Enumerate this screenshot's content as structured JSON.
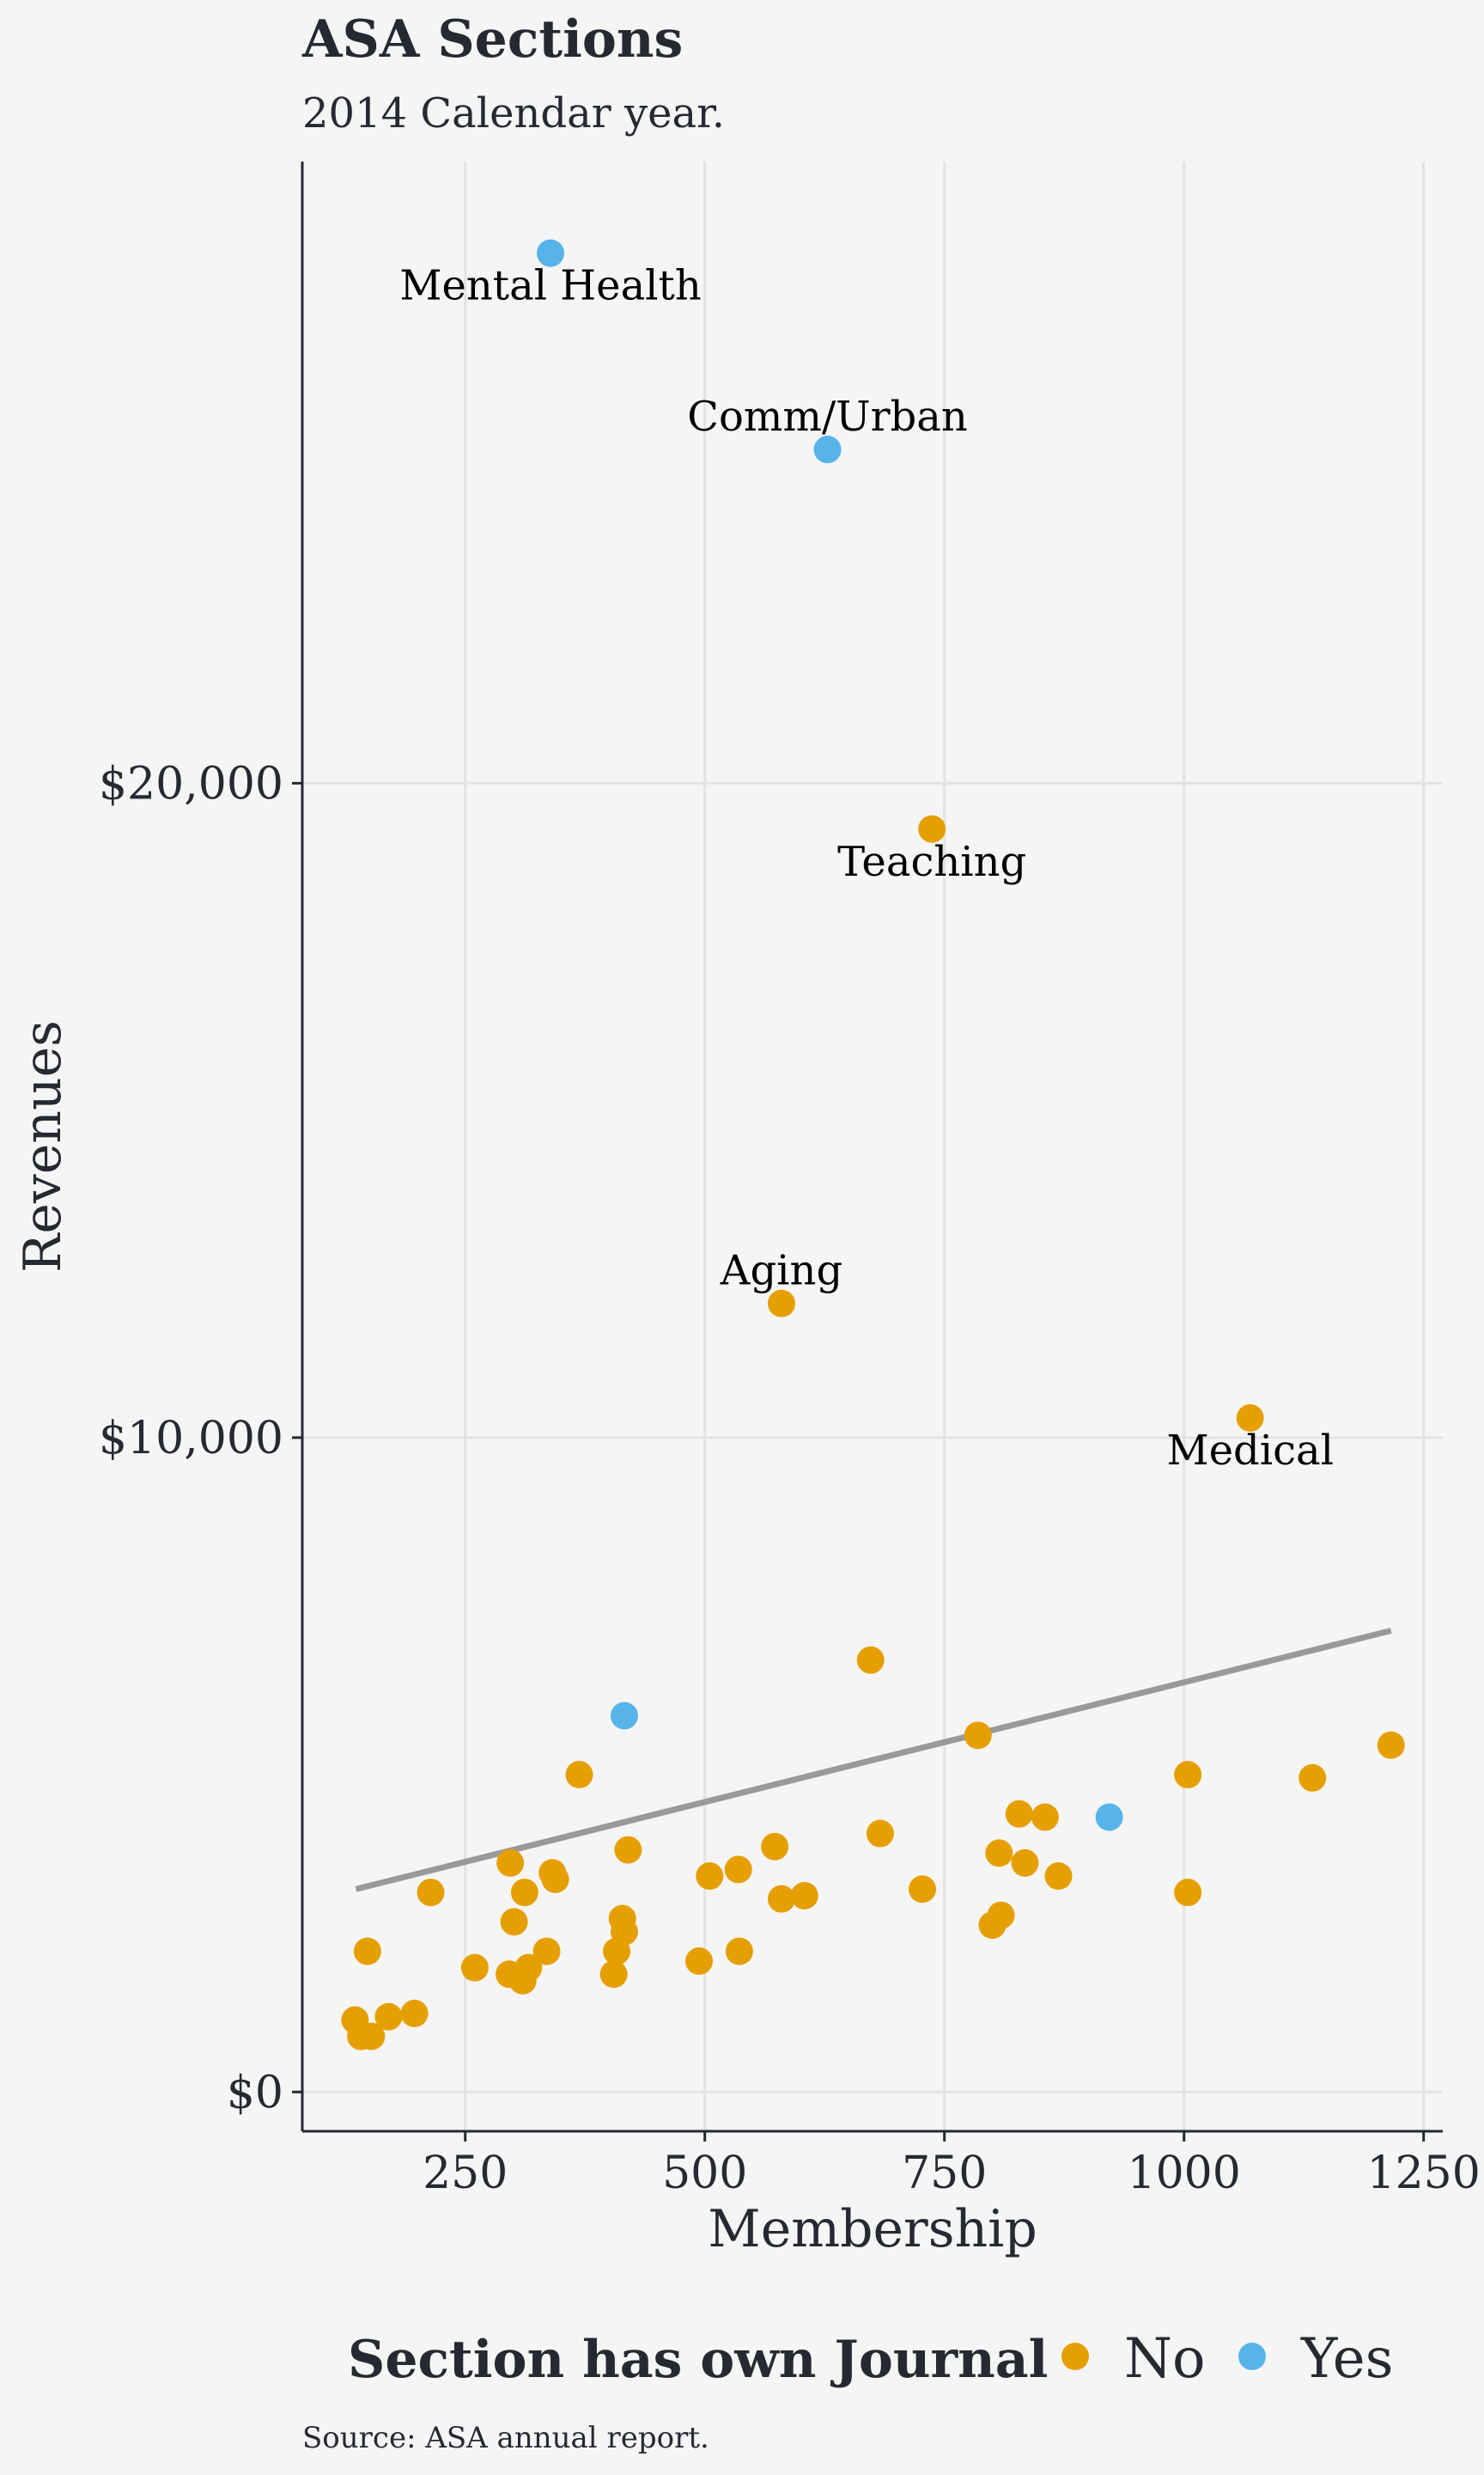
{
  "chart_data": {
    "type": "scatter",
    "title": "ASA Sections",
    "subtitle": "2014 Calendar year.",
    "xlabel": "Membership",
    "ylabel": "Revenues",
    "xlim": [
      80,
      1270
    ],
    "ylim": [
      -600,
      29500
    ],
    "xticks": [
      250,
      500,
      750,
      1000,
      1250
    ],
    "xtick_labels": [
      "250",
      "500",
      "750",
      "1000",
      "1250"
    ],
    "yticks": [
      0,
      10000,
      20000
    ],
    "ytick_labels": [
      "$0",
      "$10,000",
      "$20,000"
    ],
    "grid": true,
    "legend": {
      "title": "Section has own Journal",
      "position": "bottom",
      "entries": [
        {
          "label": "No",
          "color": "#E69F00"
        },
        {
          "label": "Yes",
          "color": "#56B4E9"
        }
      ]
    },
    "trend_line": {
      "x": [
        136,
        1216
      ],
      "y": [
        3100,
        7050
      ],
      "color": "#999999"
    },
    "series": [
      {
        "name": "No",
        "color": "#E69F00",
        "points": [
          [
            737,
            19300
          ],
          [
            580,
            12050
          ],
          [
            1069,
            10300
          ],
          [
            673,
            6600
          ],
          [
            785,
            5450
          ],
          [
            1216,
            5300
          ],
          [
            369,
            4850
          ],
          [
            1004,
            4850
          ],
          [
            1134,
            4800
          ],
          [
            828,
            4250
          ],
          [
            855,
            4200
          ],
          [
            683,
            3950
          ],
          [
            420,
            3700
          ],
          [
            573,
            3750
          ],
          [
            807,
            3650
          ],
          [
            297,
            3500
          ],
          [
            834,
            3500
          ],
          [
            535,
            3400
          ],
          [
            341,
            3350
          ],
          [
            869,
            3300
          ],
          [
            344,
            3250
          ],
          [
            505,
            3300
          ],
          [
            214,
            3050
          ],
          [
            312,
            3050
          ],
          [
            727,
            3100
          ],
          [
            1004,
            3050
          ],
          [
            580,
            2950
          ],
          [
            604,
            3000
          ],
          [
            809,
            2700
          ],
          [
            301,
            2600
          ],
          [
            414,
            2650
          ],
          [
            800,
            2550
          ],
          [
            416,
            2450
          ],
          [
            148,
            2150
          ],
          [
            335,
            2150
          ],
          [
            408,
            2150
          ],
          [
            536,
            2150
          ],
          [
            494,
            2000
          ],
          [
            260,
            1900
          ],
          [
            296,
            1800
          ],
          [
            316,
            1900
          ],
          [
            405,
            1800
          ],
          [
            310,
            1700
          ],
          [
            197,
            1200
          ],
          [
            170,
            1150
          ],
          [
            135,
            1100
          ],
          [
            141,
            850
          ],
          [
            152,
            850
          ]
        ]
      },
      {
        "name": "Yes",
        "color": "#56B4E9",
        "points": [
          [
            339,
            28100
          ],
          [
            628,
            25100
          ],
          [
            416,
            5750
          ],
          [
            922,
            4200
          ]
        ]
      }
    ],
    "annotations": [
      {
        "text": "Mental Health",
        "x": 339,
        "y": 27600
      },
      {
        "text": "Comm/Urban",
        "x": 628,
        "y": 25600
      },
      {
        "text": "Teaching",
        "x": 737,
        "y": 18800
      },
      {
        "text": "Aging",
        "x": 580,
        "y": 12550
      },
      {
        "text": "Medical",
        "x": 1069,
        "y": 9800
      }
    ],
    "caption": "Source: ASA annual report."
  }
}
